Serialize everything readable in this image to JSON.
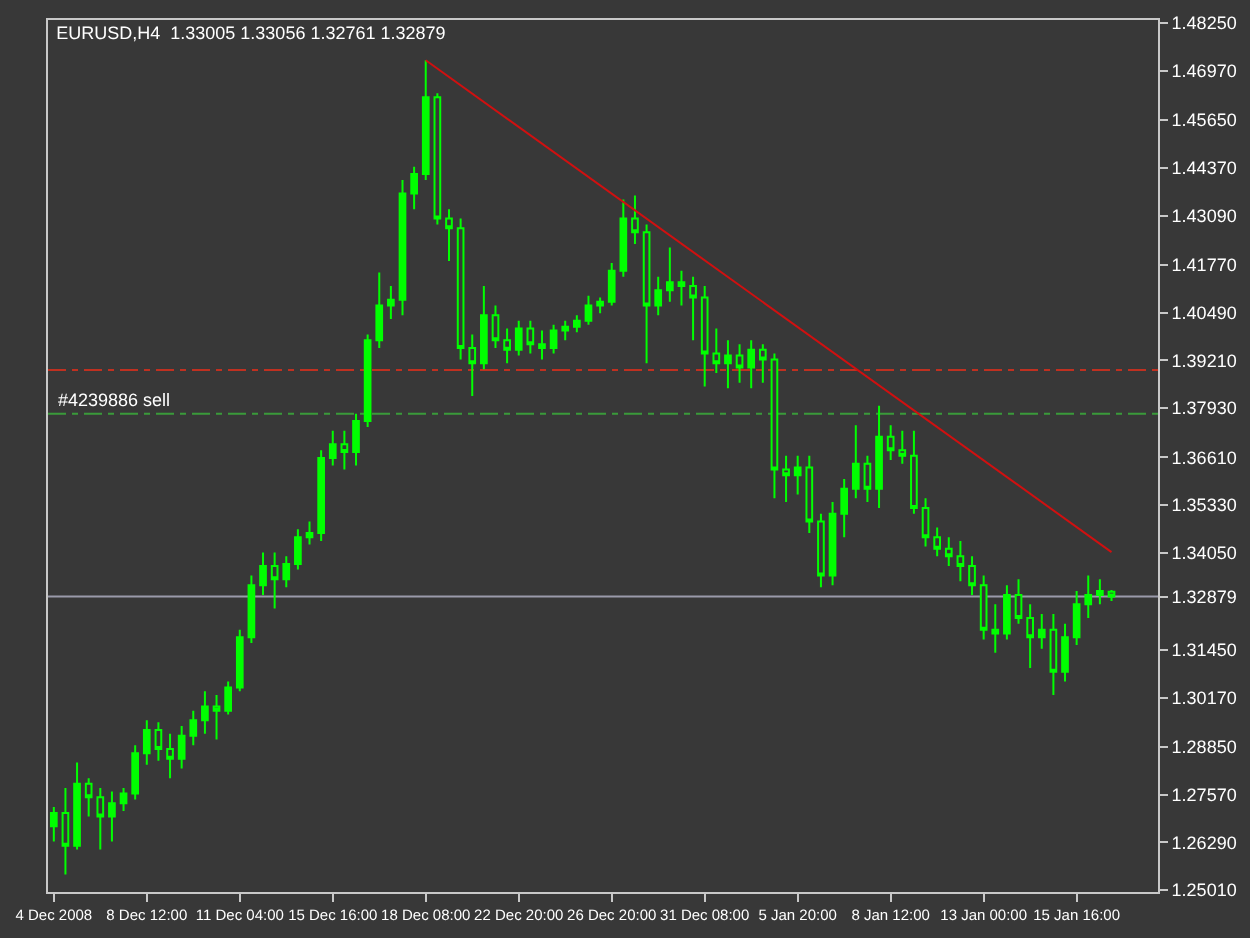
{
  "chart_data": {
    "type": "candlestick",
    "title": "EURUSD,H4  1.33005 1.33056 1.32761 1.32879",
    "color": "#00ff00",
    "categories": [
      "4 Dec 2008",
      null,
      null,
      null,
      null,
      null,
      null,
      null,
      "8 Dec 12:00",
      null,
      null,
      null,
      null,
      null,
      null,
      null,
      "11 Dec 04:00",
      null,
      null,
      null,
      null,
      null,
      null,
      null,
      "15 Dec 16:00",
      null,
      null,
      null,
      null,
      null,
      null,
      null,
      "18 Dec 08:00",
      null,
      null,
      null,
      null,
      null,
      null,
      null,
      "22 Dec 20:00",
      null,
      null,
      null,
      null,
      null,
      null,
      null,
      "26 Dec 20:00",
      null,
      null,
      null,
      null,
      null,
      null,
      null,
      "31 Dec 08:00",
      null,
      null,
      null,
      null,
      null,
      null,
      null,
      "5 Jan 20:00",
      null,
      null,
      null,
      null,
      null,
      null,
      null,
      "8 Jan 12:00",
      null,
      null,
      null,
      null,
      null,
      null,
      null,
      "13 Jan 00:00",
      null,
      null,
      null,
      null,
      null,
      null,
      null,
      "15 Jan 16:00",
      null,
      null,
      null
    ],
    "ohlc": [
      [
        1.2672,
        1.2724,
        1.2631,
        1.2708
      ],
      [
        1.2708,
        1.2775,
        1.2543,
        1.262
      ],
      [
        1.262,
        1.2843,
        1.261,
        1.2786
      ],
      [
        1.2786,
        1.2801,
        1.2698,
        1.275
      ],
      [
        1.275,
        1.2775,
        1.261,
        1.2698
      ],
      [
        1.2698,
        1.2765,
        1.2631,
        1.2734
      ],
      [
        1.2734,
        1.2775,
        1.2713,
        1.276
      ],
      [
        1.276,
        1.2889,
        1.2744,
        1.2868
      ],
      [
        1.2868,
        1.2956,
        1.2837,
        1.293
      ],
      [
        1.293,
        1.2951,
        1.2848,
        1.2879
      ],
      [
        1.2879,
        1.292,
        1.2801,
        1.2853
      ],
      [
        1.2853,
        1.2941,
        1.2827,
        1.2915
      ],
      [
        1.2915,
        1.2982,
        1.2889,
        1.2956
      ],
      [
        1.2956,
        1.3034,
        1.292,
        1.2993
      ],
      [
        1.2993,
        1.3024,
        1.2905,
        1.2982
      ],
      [
        1.2982,
        1.306,
        1.2972,
        1.3044
      ],
      [
        1.3044,
        1.3199,
        1.3034,
        1.3179
      ],
      [
        1.3179,
        1.3344,
        1.3163,
        1.3318
      ],
      [
        1.3318,
        1.3406,
        1.3292,
        1.337
      ],
      [
        1.337,
        1.3406,
        1.3256,
        1.3334
      ],
      [
        1.3334,
        1.3396,
        1.3313,
        1.3375
      ],
      [
        1.3375,
        1.3468,
        1.336,
        1.3447
      ],
      [
        1.3447,
        1.3489,
        1.3427,
        1.3458
      ],
      [
        1.3458,
        1.368,
        1.3437,
        1.3659
      ],
      [
        1.3659,
        1.3732,
        1.3639,
        1.3696
      ],
      [
        1.3696,
        1.3732,
        1.3628,
        1.3675
      ],
      [
        1.3675,
        1.3778,
        1.3639,
        1.3758
      ],
      [
        1.3758,
        1.399,
        1.3742,
        1.3975
      ],
      [
        1.3975,
        1.4156,
        1.3954,
        1.4068
      ],
      [
        1.4068,
        1.412,
        1.4032,
        1.4083
      ],
      [
        1.4083,
        1.4404,
        1.4042,
        1.4368
      ],
      [
        1.4368,
        1.444,
        1.4326,
        1.442
      ],
      [
        1.442,
        1.4725,
        1.4404,
        1.4626
      ],
      [
        1.4626,
        1.4637,
        1.4285,
        1.4301
      ],
      [
        1.4301,
        1.4326,
        1.4187,
        1.4275
      ],
      [
        1.4275,
        1.4301,
        1.3923,
        1.3954
      ],
      [
        1.3954,
        1.399,
        1.3825,
        1.3913
      ],
      [
        1.3913,
        1.412,
        1.3897,
        1.4042
      ],
      [
        1.4042,
        1.4068,
        1.3954,
        1.3975
      ],
      [
        1.3975,
        1.4006,
        1.3913,
        1.3949
      ],
      [
        1.3949,
        1.4027,
        1.3934,
        1.4006
      ],
      [
        1.4006,
        1.4027,
        1.3939,
        1.3964
      ],
      [
        1.3964,
        1.4001,
        1.3923,
        1.3954
      ],
      [
        1.3954,
        1.4016,
        1.3939,
        1.4001
      ],
      [
        1.4001,
        1.4027,
        1.3975,
        1.4011
      ],
      [
        1.4011,
        1.4042,
        1.3996,
        1.4027
      ],
      [
        1.4027,
        1.4094,
        1.4016,
        1.4068
      ],
      [
        1.4068,
        1.4089,
        1.4047,
        1.4078
      ],
      [
        1.4078,
        1.4182,
        1.4068,
        1.4161
      ],
      [
        1.4161,
        1.4352,
        1.4145,
        1.4301
      ],
      [
        1.4301,
        1.4363,
        1.4233,
        1.4264
      ],
      [
        1.4264,
        1.4285,
        1.3913,
        1.4068
      ],
      [
        1.4068,
        1.4145,
        1.4042,
        1.4109
      ],
      [
        1.4109,
        1.4223,
        1.4078,
        1.413
      ],
      [
        1.413,
        1.4161,
        1.4068,
        1.412
      ],
      [
        1.412,
        1.4145,
        1.3975,
        1.4089
      ],
      [
        1.4089,
        1.412,
        1.3851,
        1.3939
      ],
      [
        1.3939,
        1.4006,
        1.3887,
        1.3913
      ],
      [
        1.3913,
        1.3975,
        1.3846,
        1.3934
      ],
      [
        1.3934,
        1.3964,
        1.3861,
        1.3902
      ],
      [
        1.3902,
        1.3975,
        1.3846,
        1.3949
      ],
      [
        1.3949,
        1.3964,
        1.3861,
        1.3923
      ],
      [
        1.3923,
        1.3939,
        1.3551,
        1.3628
      ],
      [
        1.3628,
        1.3665,
        1.3541,
        1.3613
      ],
      [
        1.3613,
        1.3665,
        1.3561,
        1.3634
      ],
      [
        1.3634,
        1.3665,
        1.3458,
        1.3489
      ],
      [
        1.3489,
        1.351,
        1.3313,
        1.3344
      ],
      [
        1.3344,
        1.3541,
        1.3318,
        1.351
      ],
      [
        1.351,
        1.3603,
        1.3447,
        1.3577
      ],
      [
        1.3577,
        1.3747,
        1.3551,
        1.3644
      ],
      [
        1.3644,
        1.3665,
        1.3541,
        1.3577
      ],
      [
        1.3577,
        1.3799,
        1.3525,
        1.3716
      ],
      [
        1.3716,
        1.3747,
        1.3654,
        1.368
      ],
      [
        1.368,
        1.3732,
        1.3644,
        1.3665
      ],
      [
        1.3665,
        1.3732,
        1.351,
        1.3525
      ],
      [
        1.3525,
        1.3551,
        1.3422,
        1.3447
      ],
      [
        1.3447,
        1.3473,
        1.3396,
        1.3416
      ],
      [
        1.3416,
        1.3447,
        1.337,
        1.3396
      ],
      [
        1.3396,
        1.3437,
        1.3329,
        1.337
      ],
      [
        1.337,
        1.3396,
        1.3292,
        1.3318
      ],
      [
        1.3318,
        1.3344,
        1.3173,
        1.3199
      ],
      [
        1.3199,
        1.3267,
        1.3137,
        1.3189
      ],
      [
        1.3189,
        1.3318,
        1.3173,
        1.3292
      ],
      [
        1.3292,
        1.3334,
        1.3215,
        1.323
      ],
      [
        1.323,
        1.3267,
        1.3096,
        1.3179
      ],
      [
        1.3179,
        1.3241,
        1.3148,
        1.3199
      ],
      [
        1.3199,
        1.3241,
        1.3024,
        1.3086
      ],
      [
        1.3086,
        1.3215,
        1.306,
        1.3179
      ],
      [
        1.3179,
        1.3303,
        1.3158,
        1.3267
      ],
      [
        1.3267,
        1.3344,
        1.323,
        1.3292
      ],
      [
        1.3292,
        1.3334,
        1.3267,
        1.3303
      ],
      [
        1.33005,
        1.33056,
        1.32761,
        1.32879
      ]
    ],
    "series": [
      {
        "type": "line",
        "values": [
          null,
          null,
          null,
          null,
          null,
          null,
          null,
          null,
          null,
          null,
          null,
          null,
          null,
          null,
          null,
          null,
          null,
          null,
          null,
          null,
          null,
          null,
          null,
          null,
          null,
          null,
          null,
          null,
          null,
          null,
          null,
          null,
          1.4725,
          null,
          null,
          null,
          null,
          null,
          null,
          null,
          null,
          null,
          null,
          null,
          null,
          null,
          null,
          null,
          null,
          null,
          null,
          null,
          null,
          null,
          null,
          null,
          null,
          null,
          null,
          null,
          null,
          null,
          null,
          null,
          null,
          null,
          null,
          null,
          null,
          null,
          null,
          null,
          null,
          null,
          null,
          null,
          null,
          null,
          null,
          null,
          null,
          null,
          null,
          null,
          null,
          null,
          null,
          null,
          null,
          null,
          null,
          1.3407
        ],
        "color": "#d01010"
      }
    ],
    "ref_lines": [
      {
        "axis": "y",
        "value": 1.3895,
        "color": "#c03020",
        "line_style": "dashed"
      },
      {
        "axis": "y",
        "value": 1.3778,
        "label": "#4239886 sell",
        "color": "#3a9a3a",
        "line_style": "dashed"
      },
      {
        "axis": "y",
        "value": 1.32879,
        "color": "#9a9aaa",
        "line_style": "solid"
      }
    ],
    "ylim": [
      1.2496,
      1.4833
    ],
    "yticks": [
      {
        "value": 1.4825,
        "label": "1.48250"
      },
      {
        "value": 1.4697,
        "label": "1.46970"
      },
      {
        "value": 1.4565,
        "label": "1.45650"
      },
      {
        "value": 1.4437,
        "label": "1.44370"
      },
      {
        "value": 1.4309,
        "label": "1.43090"
      },
      {
        "value": 1.4177,
        "label": "1.41770"
      },
      {
        "value": 1.4049,
        "label": "1.40490"
      },
      {
        "value": 1.3921,
        "label": "1.39210"
      },
      {
        "value": 1.3793,
        "label": "1.37930"
      },
      {
        "value": 1.3661,
        "label": "1.36610"
      },
      {
        "value": 1.3533,
        "label": "1.35330"
      },
      {
        "value": 1.3405,
        "label": "1.34050"
      },
      {
        "value": 1.32879,
        "label": "1.32879"
      },
      {
        "value": 1.3145,
        "label": "1.31450"
      },
      {
        "value": 1.3017,
        "label": "1.30170"
      },
      {
        "value": 1.2885,
        "label": "1.28850"
      },
      {
        "value": 1.2757,
        "label": "1.27570"
      },
      {
        "value": 1.2629,
        "label": "1.26290"
      },
      {
        "value": 1.2501,
        "label": "1.25010"
      }
    ],
    "line_style": "solid"
  }
}
